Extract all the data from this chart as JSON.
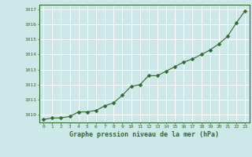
{
  "x": [
    0,
    1,
    2,
    3,
    4,
    5,
    6,
    7,
    8,
    9,
    10,
    11,
    12,
    13,
    14,
    15,
    16,
    17,
    18,
    19,
    20,
    21,
    22,
    23
  ],
  "y": [
    1009.7,
    1009.8,
    1009.8,
    1009.9,
    1010.2,
    1010.2,
    1010.3,
    1010.6,
    1010.8,
    1011.3,
    1011.9,
    1012.0,
    1012.6,
    1012.6,
    1012.9,
    1013.2,
    1013.5,
    1013.7,
    1014.0,
    1014.3,
    1014.7,
    1015.2,
    1016.1,
    1016.9
  ],
  "line_color": "#2d6a2d",
  "marker": "D",
  "marker_size": 2.5,
  "bg_color": "#cce8e8",
  "grid_color": "#ffffff",
  "xlabel": "Graphe pression niveau de la mer (hPa)",
  "tick_color": "#2d6a2d",
  "ylim": [
    1009.5,
    1017.3
  ],
  "yticks": [
    1010,
    1011,
    1012,
    1013,
    1014,
    1015,
    1016,
    1017
  ],
  "xticks": [
    0,
    1,
    2,
    3,
    4,
    5,
    6,
    7,
    8,
    9,
    10,
    11,
    12,
    13,
    14,
    15,
    16,
    17,
    18,
    19,
    20,
    21,
    22,
    23
  ],
  "spine_color": "#2d6a2d",
  "line_width": 0.8
}
